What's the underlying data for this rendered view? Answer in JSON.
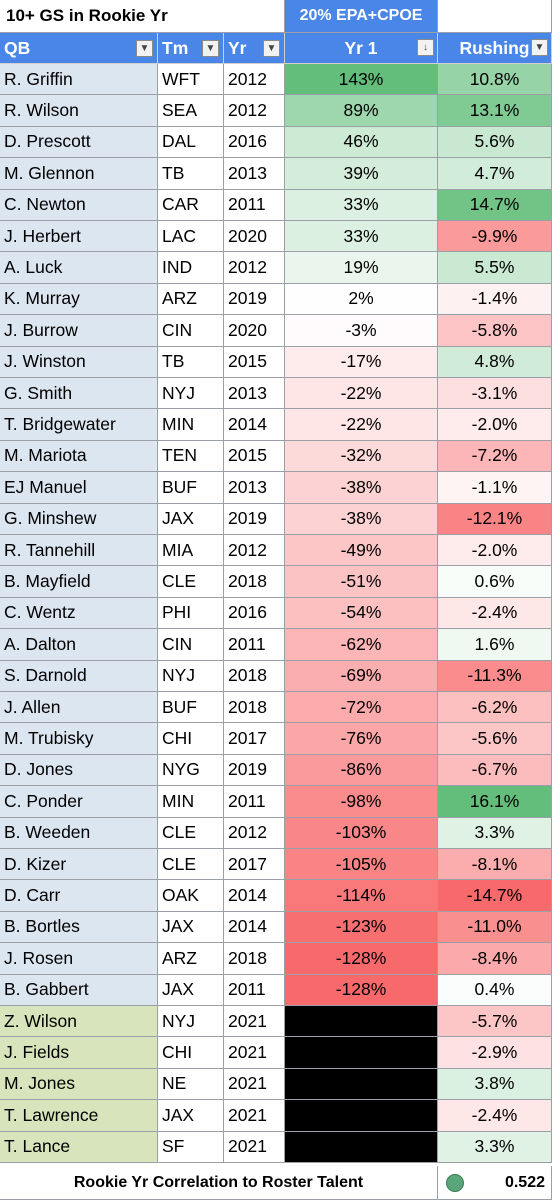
{
  "title": "10+ GS in Rookie Yr",
  "metric_group": "20% EPA+CPOE",
  "columns": {
    "qb": "QB",
    "tm": "Tm",
    "yr": "Yr",
    "yr1": "Yr 1",
    "rushing": "Rushing"
  },
  "colors": {
    "header_blue": "#4a86e8",
    "row_blue": "#dce6f1",
    "row_green": "#d8e4bc",
    "pos": "#63be7b",
    "neg": "#f8696b"
  },
  "rows": [
    {
      "qb": "R. Griffin",
      "tm": "WFT",
      "yr": "2012",
      "yr1": "143%",
      "rushing": "10.8%",
      "y1v": 143,
      "rv": 10.8
    },
    {
      "qb": "R. Wilson",
      "tm": "SEA",
      "yr": "2012",
      "yr1": "89%",
      "rushing": "13.1%",
      "y1v": 89,
      "rv": 13.1
    },
    {
      "qb": "D. Prescott",
      "tm": "DAL",
      "yr": "2016",
      "yr1": "46%",
      "rushing": "5.6%",
      "y1v": 46,
      "rv": 5.6
    },
    {
      "qb": "M. Glennon",
      "tm": "TB",
      "yr": "2013",
      "yr1": "39%",
      "rushing": "4.7%",
      "y1v": 39,
      "rv": 4.7
    },
    {
      "qb": "C. Newton",
      "tm": "CAR",
      "yr": "2011",
      "yr1": "33%",
      "rushing": "14.7%",
      "y1v": 33,
      "rv": 14.7
    },
    {
      "qb": "J. Herbert",
      "tm": "LAC",
      "yr": "2020",
      "yr1": "33%",
      "rushing": "-9.9%",
      "y1v": 33,
      "rv": -9.9
    },
    {
      "qb": "A. Luck",
      "tm": "IND",
      "yr": "2012",
      "yr1": "19%",
      "rushing": "5.5%",
      "y1v": 19,
      "rv": 5.5
    },
    {
      "qb": "K. Murray",
      "tm": "ARZ",
      "yr": "2019",
      "yr1": "2%",
      "rushing": "-1.4%",
      "y1v": 2,
      "rv": -1.4
    },
    {
      "qb": "J. Burrow",
      "tm": "CIN",
      "yr": "2020",
      "yr1": "-3%",
      "rushing": "-5.8%",
      "y1v": -3,
      "rv": -5.8
    },
    {
      "qb": "J. Winston",
      "tm": "TB",
      "yr": "2015",
      "yr1": "-17%",
      "rushing": "4.8%",
      "y1v": -17,
      "rv": 4.8
    },
    {
      "qb": "G. Smith",
      "tm": "NYJ",
      "yr": "2013",
      "yr1": "-22%",
      "rushing": "-3.1%",
      "y1v": -22,
      "rv": -3.1
    },
    {
      "qb": "T. Bridgewater",
      "tm": "MIN",
      "yr": "2014",
      "yr1": "-22%",
      "rushing": "-2.0%",
      "y1v": -22,
      "rv": -2.0
    },
    {
      "qb": "M. Mariota",
      "tm": "TEN",
      "yr": "2015",
      "yr1": "-32%",
      "rushing": "-7.2%",
      "y1v": -32,
      "rv": -7.2
    },
    {
      "qb": "EJ Manuel",
      "tm": "BUF",
      "yr": "2013",
      "yr1": "-38%",
      "rushing": "-1.1%",
      "y1v": -38,
      "rv": -1.1
    },
    {
      "qb": "G. Minshew",
      "tm": "JAX",
      "yr": "2019",
      "yr1": "-38%",
      "rushing": "-12.1%",
      "y1v": -38,
      "rv": -12.1
    },
    {
      "qb": "R. Tannehill",
      "tm": "MIA",
      "yr": "2012",
      "yr1": "-49%",
      "rushing": "-2.0%",
      "y1v": -49,
      "rv": -2.0
    },
    {
      "qb": "B. Mayfield",
      "tm": "CLE",
      "yr": "2018",
      "yr1": "-51%",
      "rushing": "0.6%",
      "y1v": -51,
      "rv": 0.6
    },
    {
      "qb": "C. Wentz",
      "tm": "PHI",
      "yr": "2016",
      "yr1": "-54%",
      "rushing": "-2.4%",
      "y1v": -54,
      "rv": -2.4
    },
    {
      "qb": "A. Dalton",
      "tm": "CIN",
      "yr": "2011",
      "yr1": "-62%",
      "rushing": "1.6%",
      "y1v": -62,
      "rv": 1.6
    },
    {
      "qb": "S. Darnold",
      "tm": "NYJ",
      "yr": "2018",
      "yr1": "-69%",
      "rushing": "-11.3%",
      "y1v": -69,
      "rv": -11.3
    },
    {
      "qb": "J. Allen",
      "tm": "BUF",
      "yr": "2018",
      "yr1": "-72%",
      "rushing": "-6.2%",
      "y1v": -72,
      "rv": -6.2
    },
    {
      "qb": "M. Trubisky",
      "tm": "CHI",
      "yr": "2017",
      "yr1": "-76%",
      "rushing": "-5.6%",
      "y1v": -76,
      "rv": -5.6
    },
    {
      "qb": "D. Jones",
      "tm": "NYG",
      "yr": "2019",
      "yr1": "-86%",
      "rushing": "-6.7%",
      "y1v": -86,
      "rv": -6.7
    },
    {
      "qb": "C. Ponder",
      "tm": "MIN",
      "yr": "2011",
      "yr1": "-98%",
      "rushing": "16.1%",
      "y1v": -98,
      "rv": 16.1
    },
    {
      "qb": "B. Weeden",
      "tm": "CLE",
      "yr": "2012",
      "yr1": "-103%",
      "rushing": "3.3%",
      "y1v": -103,
      "rv": 3.3
    },
    {
      "qb": "D. Kizer",
      "tm": "CLE",
      "yr": "2017",
      "yr1": "-105%",
      "rushing": "-8.1%",
      "y1v": -105,
      "rv": -8.1
    },
    {
      "qb": "D. Carr",
      "tm": "OAK",
      "yr": "2014",
      "yr1": "-114%",
      "rushing": "-14.7%",
      "y1v": -114,
      "rv": -14.7
    },
    {
      "qb": "B. Bortles",
      "tm": "JAX",
      "yr": "2014",
      "yr1": "-123%",
      "rushing": "-11.0%",
      "y1v": -123,
      "rv": -11.0
    },
    {
      "qb": "J. Rosen",
      "tm": "ARZ",
      "yr": "2018",
      "yr1": "-128%",
      "rushing": "-8.4%",
      "y1v": -128,
      "rv": -8.4
    },
    {
      "qb": "B. Gabbert",
      "tm": "JAX",
      "yr": "2011",
      "yr1": "-128%",
      "rushing": "0.4%",
      "y1v": -128,
      "rv": 0.4
    },
    {
      "qb": "Z. Wilson",
      "tm": "NYJ",
      "yr": "2021",
      "yr1": "",
      "rushing": "-5.7%",
      "y1v": null,
      "rv": -5.7,
      "rookie2021": true
    },
    {
      "qb": "J. Fields",
      "tm": "CHI",
      "yr": "2021",
      "yr1": "",
      "rushing": "-2.9%",
      "y1v": null,
      "rv": -2.9,
      "rookie2021": true
    },
    {
      "qb": "M. Jones",
      "tm": "NE",
      "yr": "2021",
      "yr1": "",
      "rushing": "3.8%",
      "y1v": null,
      "rv": 3.8,
      "rookie2021": true
    },
    {
      "qb": "T. Lawrence",
      "tm": "JAX",
      "yr": "2021",
      "yr1": "",
      "rushing": "-2.4%",
      "y1v": null,
      "rv": -2.4,
      "rookie2021": true
    },
    {
      "qb": "T. Lance",
      "tm": "SF",
      "yr": "2021",
      "yr1": "",
      "rushing": "3.3%",
      "y1v": null,
      "rv": 3.3,
      "rookie2021": true
    }
  ],
  "footer": {
    "label": "Rookie Yr Correlation to Roster Talent",
    "value": "0.522"
  }
}
